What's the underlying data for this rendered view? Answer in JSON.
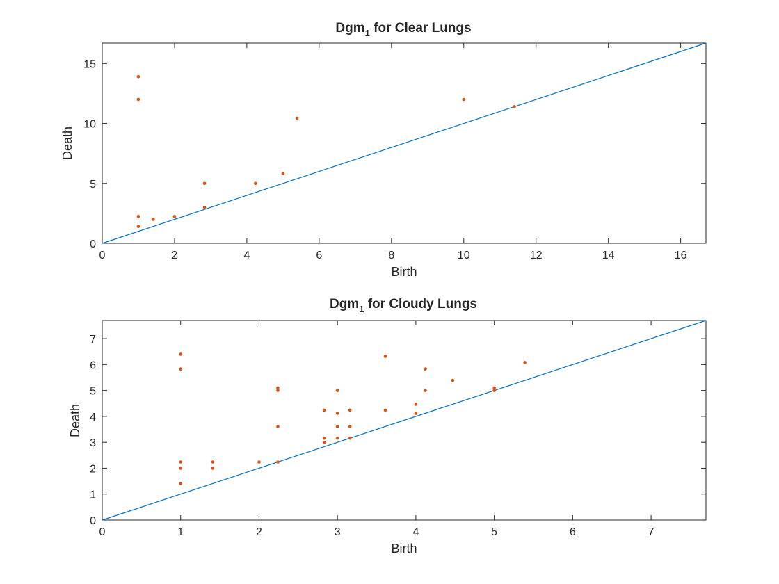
{
  "chart_data": [
    {
      "type": "scatter",
      "title": "Dgm",
      "title_subscript": "1",
      "title_suffix": " for Clear Lungs",
      "xlabel": "Birth",
      "ylabel": "Death",
      "xlim": [
        0,
        16.7
      ],
      "ylim": [
        0,
        16.7
      ],
      "xticks": [
        0,
        2,
        4,
        6,
        8,
        10,
        12,
        14,
        16
      ],
      "yticks": [
        0,
        5,
        10,
        15
      ],
      "grid": false,
      "diagonal": true,
      "colors": {
        "points": "#d95319",
        "diagonal": "#0072bd"
      },
      "points": [
        [
          1.0,
          13.9
        ],
        [
          1.0,
          12.0
        ],
        [
          1.0,
          2.24
        ],
        [
          1.0,
          1.41
        ],
        [
          1.41,
          2.0
        ],
        [
          2.0,
          2.24
        ],
        [
          2.83,
          5.0
        ],
        [
          2.83,
          3.0
        ],
        [
          4.24,
          5.0
        ],
        [
          5.0,
          5.83
        ],
        [
          5.39,
          10.44
        ],
        [
          10.0,
          12.0
        ],
        [
          11.4,
          11.4
        ]
      ]
    },
    {
      "type": "scatter",
      "title": "Dgm",
      "title_subscript": "1",
      "title_suffix": " for Cloudy Lungs",
      "xlabel": "Birth",
      "ylabel": "Death",
      "xlim": [
        0,
        7.7
      ],
      "ylim": [
        0,
        7.7
      ],
      "xticks": [
        0,
        1,
        2,
        3,
        4,
        5,
        6,
        7
      ],
      "yticks": [
        0,
        1,
        2,
        3,
        4,
        5,
        6,
        7
      ],
      "grid": false,
      "diagonal": true,
      "colors": {
        "points": "#d95319",
        "diagonal": "#0072bd"
      },
      "points": [
        [
          1.0,
          6.4
        ],
        [
          1.0,
          5.83
        ],
        [
          1.0,
          2.24
        ],
        [
          1.0,
          2.0
        ],
        [
          1.0,
          1.41
        ],
        [
          1.41,
          2.24
        ],
        [
          1.41,
          2.0
        ],
        [
          2.0,
          2.24
        ],
        [
          2.24,
          5.1
        ],
        [
          2.24,
          5.0
        ],
        [
          2.24,
          3.61
        ],
        [
          2.24,
          2.24
        ],
        [
          2.83,
          4.24
        ],
        [
          2.83,
          3.16
        ],
        [
          2.83,
          3.0
        ],
        [
          3.0,
          5.0
        ],
        [
          3.0,
          4.12
        ],
        [
          3.0,
          3.61
        ],
        [
          3.0,
          3.16
        ],
        [
          3.16,
          4.24
        ],
        [
          3.16,
          3.61
        ],
        [
          3.16,
          3.16
        ],
        [
          3.61,
          6.32
        ],
        [
          3.61,
          4.24
        ],
        [
          4.0,
          4.47
        ],
        [
          4.0,
          4.12
        ],
        [
          4.12,
          5.83
        ],
        [
          4.12,
          5.0
        ],
        [
          4.47,
          5.39
        ],
        [
          5.0,
          5.1
        ],
        [
          5.0,
          5.0
        ],
        [
          5.39,
          6.08
        ]
      ]
    }
  ]
}
